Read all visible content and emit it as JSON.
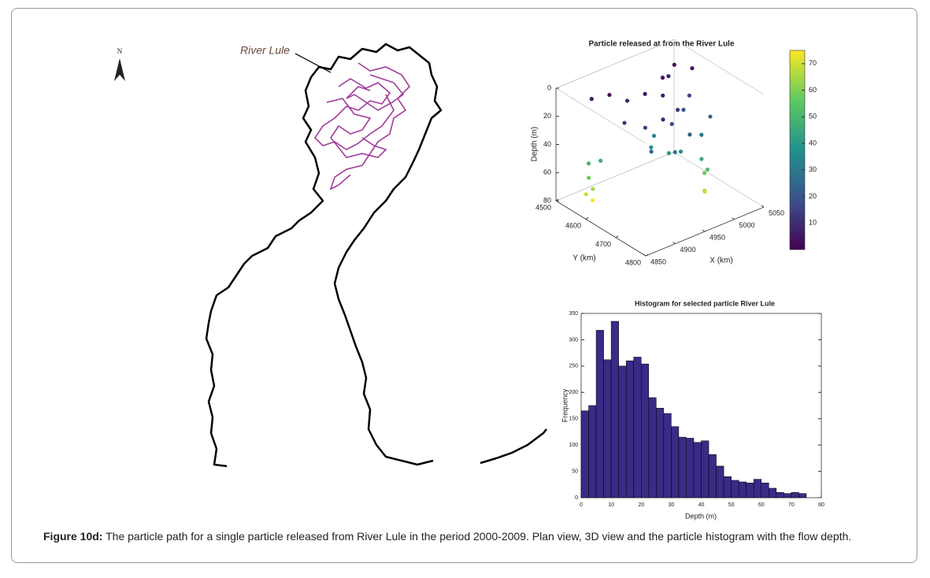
{
  "map": {
    "label": "River Lule",
    "north": "N"
  },
  "chart_data": [
    {
      "type": "scatter3d",
      "title": "Particle released at from the River Lule",
      "xlabel": "X (km)",
      "ylabel": "Y (km)",
      "zlabel": "Depth (m)",
      "x": [
        4880,
        4900,
        4920,
        4940,
        4960,
        4980,
        5000,
        5020,
        5030,
        4890,
        4910,
        4930,
        4950,
        4970,
        4990,
        5010,
        4900,
        4930,
        4960,
        4990,
        5015,
        4875,
        4870,
        4872,
        4868,
        4874,
        4880,
        4985,
        4990,
        4995,
        4980,
        4988,
        4930,
        4950,
        4960,
        4945
      ],
      "y": [
        4560,
        4580,
        4600,
        4620,
        4640,
        4600,
        4580,
        4560,
        4600,
        4650,
        4680,
        4700,
        4690,
        4670,
        4650,
        4630,
        4720,
        4740,
        4730,
        4710,
        4690,
        4560,
        4570,
        4580,
        4565,
        4575,
        4590,
        4720,
        4730,
        4710,
        4740,
        4725,
        4660,
        4680,
        4700,
        4640
      ],
      "z": [
        5,
        3,
        8,
        4,
        6,
        2,
        7,
        5,
        4,
        12,
        15,
        10,
        18,
        14,
        20,
        16,
        25,
        28,
        22,
        30,
        24,
        50,
        58,
        65,
        70,
        74,
        45,
        45,
        52,
        58,
        64,
        68,
        35,
        40,
        38,
        32
      ],
      "xlim": [
        4850,
        5050
      ],
      "xticks": [
        4850,
        4900,
        4950,
        5000,
        5050
      ],
      "ylim": [
        4500,
        4800
      ],
      "yticks": [
        4500,
        4600,
        4700,
        4800
      ],
      "zlim": [
        0,
        80
      ],
      "zticks": [
        0,
        20,
        40,
        60,
        80
      ],
      "colormap": "viridis",
      "clim": [
        0,
        75
      ],
      "cticks": [
        10,
        20,
        30,
        40,
        50,
        60,
        70
      ]
    },
    {
      "type": "histogram",
      "title": "Histogram for selected particle River Lule",
      "xlabel": "Depth (m)",
      "ylabel": "Frequency",
      "color": "#3b2a86",
      "bins": [
        0,
        2.5,
        5,
        7.5,
        10,
        12.5,
        15,
        17.5,
        20,
        22.5,
        25,
        27.5,
        30,
        32.5,
        35,
        37.5,
        40,
        42.5,
        45,
        47.5,
        50,
        52.5,
        55,
        57.5,
        60,
        62.5,
        65,
        67.5,
        70,
        72.5,
        75
      ],
      "counts": [
        165,
        175,
        318,
        262,
        335,
        250,
        260,
        267,
        254,
        190,
        170,
        160,
        135,
        115,
        113,
        105,
        108,
        82,
        60,
        40,
        33,
        30,
        28,
        35,
        28,
        18,
        10,
        8,
        10,
        8
      ],
      "xlim": [
        0,
        80
      ],
      "xticks": [
        0,
        10,
        20,
        30,
        40,
        50,
        60,
        70,
        80
      ],
      "ylim": [
        0,
        350
      ],
      "yticks": [
        0,
        50,
        100,
        150,
        200,
        250,
        300,
        350
      ]
    }
  ],
  "caption": {
    "label": "Figure 10d:",
    "text": "The particle path for a single particle released from River Lule in the period 2000-2009. Plan view, 3D view and the particle histogram with the flow depth."
  }
}
